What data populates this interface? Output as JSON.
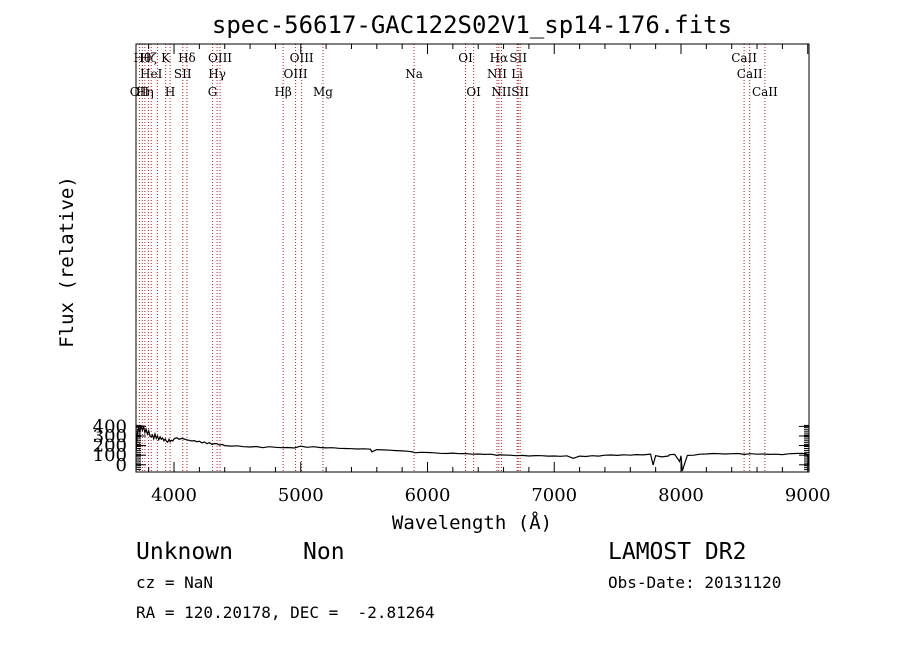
{
  "chart_data": {
    "type": "line",
    "title": "spec-56617-GAC122S02V1_sp14-176.fits",
    "xlabel": "Wavelength (Å)",
    "ylabel": "Flux (relative)",
    "xlim": [
      3700,
      9010
    ],
    "ylim": [
      -75,
      4380
    ],
    "x_ticks": [
      4000,
      5000,
      6000,
      7000,
      8000,
      9000
    ],
    "y_ticks": [
      0,
      100,
      200,
      300,
      400
    ],
    "series": [
      {
        "x": [
          3700,
          3710,
          3720,
          3730,
          3740,
          3750,
          3760,
          3770,
          3780,
          3790,
          3800,
          3810,
          3820,
          3830,
          3840,
          3850,
          3860,
          3870,
          3880,
          3890,
          3900,
          3910,
          3920,
          3930,
          3940,
          3950,
          3960,
          3970,
          3980,
          3990,
          4000,
          4020,
          4040,
          4060,
          4080,
          4100,
          4120,
          4140,
          4160,
          4180,
          4200,
          4220,
          4240,
          4260,
          4280,
          4300,
          4320,
          4340,
          4360,
          4380,
          4400,
          4450,
          4500,
          4550,
          4600,
          4650,
          4700,
          4750,
          4800,
          4850,
          4900,
          4950,
          5000,
          5050,
          5100,
          5150,
          5200,
          5250,
          5300,
          5350,
          5400,
          5450,
          5500,
          5550,
          5560,
          5600,
          5650,
          5700,
          5750,
          5800,
          5850,
          5890,
          5900,
          5950,
          6000,
          6050,
          6100,
          6150,
          6200,
          6250,
          6300,
          6350,
          6400,
          6450,
          6500,
          6550,
          6563,
          6600,
          6650,
          6700,
          6750,
          6800,
          6850,
          6900,
          6950,
          7000,
          7050,
          7100,
          7150,
          7200,
          7250,
          7300,
          7350,
          7400,
          7450,
          7500,
          7550,
          7600,
          7650,
          7700,
          7740,
          7760,
          7780,
          7800,
          7850,
          7900,
          7910,
          7950,
          7990,
          8000,
          8010,
          8050,
          8100,
          8150,
          8200,
          8250,
          8300,
          8350,
          8400,
          8450,
          8500,
          8550,
          8600,
          8650,
          8700,
          8750,
          8800,
          8850,
          8900,
          8950,
          8990,
          9000,
          9005
        ],
        "y": [
          130,
          330,
          380,
          345,
          410,
          360,
          395,
          335,
          370,
          320,
          355,
          300,
          290,
          310,
          270,
          320,
          275,
          300,
          260,
          290,
          265,
          280,
          250,
          270,
          245,
          235,
          265,
          240,
          255,
          248,
          270,
          282,
          265,
          275,
          268,
          260,
          255,
          248,
          252,
          240,
          245,
          228,
          238,
          220,
          230,
          212,
          222,
          218,
          205,
          212,
          200,
          195,
          198,
          188,
          185,
          190,
          178,
          188,
          182,
          178,
          180,
          175,
          195,
          182,
          188,
          180,
          176,
          178,
          172,
          170,
          168,
          164,
          166,
          162,
          135,
          158,
          155,
          152,
          148,
          145,
          140,
          132,
          125,
          130,
          128,
          125,
          120,
          118,
          122,
          115,
          118,
          110,
          112,
          108,
          110,
          98,
          105,
          102,
          100,
          95,
          98,
          92,
          96,
          95,
          90,
          92,
          88,
          94,
          68,
          90,
          86,
          95,
          90,
          100,
          102,
          98,
          104,
          100,
          106,
          103,
          108,
          110,
          -2,
          95,
          82,
          92,
          105,
          108,
          32,
          94,
          -65,
          98,
          100,
          110,
          112,
          118,
          115,
          112,
          116,
          118,
          108,
          115,
          110,
          112,
          108,
          110,
          106,
          114,
          118,
          120,
          115,
          105,
          0
        ]
      }
    ],
    "lines": [
      {
        "wl": 3727,
        "label": "OII",
        "row": 3
      },
      {
        "wl": 3750,
        "label": "Hθ",
        "row": 1
      },
      {
        "wl": 3770,
        "label": "Hη",
        "row": 3
      },
      {
        "wl": 3798,
        "label": "Hζ",
        "row": 1
      },
      {
        "wl": 3820,
        "label": "HeI",
        "row": 2
      },
      {
        "wl": 3869,
        "label": "",
        "row": 2
      },
      {
        "wl": 3934,
        "label": "K",
        "row": 1
      },
      {
        "wl": 3969,
        "label": "H",
        "row": 3
      },
      {
        "wl": 4069,
        "label": "SII",
        "row": 2
      },
      {
        "wl": 4102,
        "label": "Hδ",
        "row": 1
      },
      {
        "wl": 4304,
        "label": "G",
        "row": 3
      },
      {
        "wl": 4340,
        "label": "Hγ",
        "row": 2
      },
      {
        "wl": 4363,
        "label": "OIII",
        "row": 1
      },
      {
        "wl": 4861,
        "label": "Hβ",
        "row": 3
      },
      {
        "wl": 4959,
        "label": "OIII",
        "row": 2
      },
      {
        "wl": 5007,
        "label": "OIII",
        "row": 1
      },
      {
        "wl": 5175,
        "label": "Mg",
        "row": 3
      },
      {
        "wl": 5894,
        "label": "Na",
        "row": 2
      },
      {
        "wl": 6300,
        "label": "OI",
        "row": 1
      },
      {
        "wl": 6364,
        "label": "OI",
        "row": 3
      },
      {
        "wl": 6548,
        "label": "NII",
        "row": 2
      },
      {
        "wl": 6563,
        "label": "Hα",
        "row": 1
      },
      {
        "wl": 6583,
        "label": "NII",
        "row": 3
      },
      {
        "wl": 6707,
        "label": "Li",
        "row": 2
      },
      {
        "wl": 6716,
        "label": "SII",
        "row": 1
      },
      {
        "wl": 6731,
        "label": "SII",
        "row": 3
      },
      {
        "wl": 8498,
        "label": "CaII",
        "row": 1
      },
      {
        "wl": 8542,
        "label": "CaII",
        "row": 2
      },
      {
        "wl": 8662,
        "label": "CaII",
        "row": 3
      }
    ]
  },
  "info": {
    "class": "Unknown",
    "subclass": "Non",
    "cz": "cz = NaN",
    "coords": "RA = 120.20178, DEC =  -2.81264",
    "survey": "LAMOST DR2",
    "obs_date": "Obs-Date: 20131120"
  },
  "colors": {
    "spectrum": "#000000",
    "lines": "#b22222",
    "axes": "#000000"
  }
}
